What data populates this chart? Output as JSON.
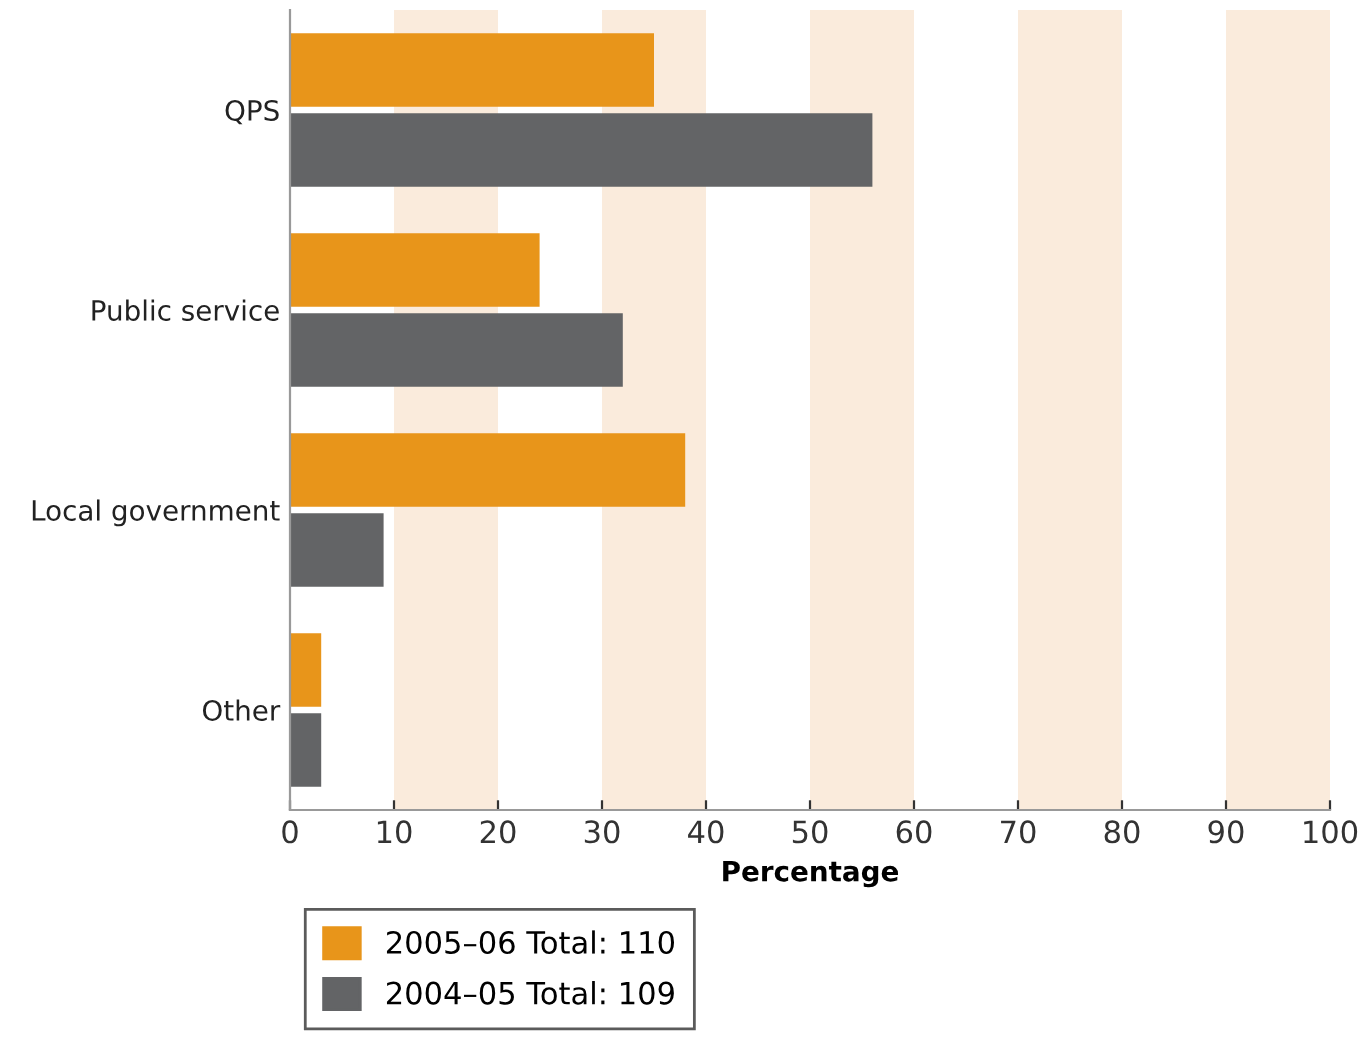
{
  "chart_data": {
    "type": "bar",
    "orientation": "horizontal",
    "xlabel": "Percentage",
    "categories": [
      "QPS",
      "Public service",
      "Local government",
      "Other"
    ],
    "series": [
      {
        "name": "2005–06 Total: 110",
        "color": "#e8951a",
        "values": [
          35,
          24,
          38,
          3
        ]
      },
      {
        "name": "2004–05 Total: 109",
        "color": "#636466",
        "values": [
          56,
          32,
          9,
          3
        ]
      }
    ],
    "xlim": [
      0,
      100
    ],
    "xticks": [
      0,
      10,
      20,
      30,
      40,
      50,
      60,
      70,
      80,
      90,
      100
    ],
    "bands": [
      {
        "axis": "x",
        "from": 10,
        "to": 20,
        "color": "#faebdc"
      },
      {
        "axis": "x",
        "from": 30,
        "to": 40,
        "color": "#faebdc"
      },
      {
        "axis": "x",
        "from": 50,
        "to": 60,
        "color": "#faebdc"
      },
      {
        "axis": "x",
        "from": 70,
        "to": 80,
        "color": "#faebdc"
      },
      {
        "axis": "x",
        "from": 90,
        "to": 100,
        "color": "#faebdc"
      }
    ],
    "grid": false,
    "legend": "bottom"
  }
}
